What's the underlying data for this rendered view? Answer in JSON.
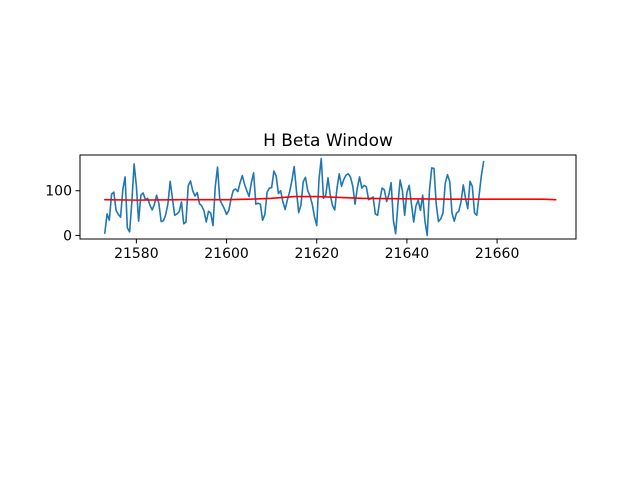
{
  "chart_data": {
    "type": "line",
    "title": "H Beta Window",
    "xlabel": "",
    "ylabel": "",
    "xlim": [
      21567.5,
      21677.5
    ],
    "ylim": [
      -8,
      180
    ],
    "grid": false,
    "x_ticks": [
      21580,
      21600,
      21620,
      21640,
      21660
    ],
    "y_ticks": [
      0,
      100
    ],
    "series": [
      {
        "color": "#1f77b4",
        "x_start": 21573,
        "x_step": 0.5,
        "values": [
          5,
          48,
          34,
          92,
          97,
          56,
          47,
          41,
          103,
          131,
          17,
          8,
          75,
          160,
          111,
          32,
          90,
          95,
          80,
          83,
          68,
          57,
          69,
          90,
          71,
          31,
          33,
          46,
          71,
          121,
          83,
          45,
          48,
          53,
          75,
          26,
          30,
          111,
          122,
          100,
          88,
          96,
          71,
          66,
          55,
          30,
          54,
          50,
          22,
          109,
          153,
          80,
          70,
          60,
          47,
          56,
          82,
          101,
          104,
          98,
          118,
          134,
          114,
          100,
          87,
          118,
          140,
          70,
          72,
          70,
          34,
          47,
          97,
          106,
          107,
          144,
          133,
          94,
          100,
          75,
          58,
          80,
          98,
          123,
          154,
          100,
          51,
          68,
          120,
          130,
          100,
          89,
          70,
          42,
          22,
          125,
          172,
          83,
          90,
          129,
          90,
          67,
          57,
          106,
          138,
          110,
          125,
          135,
          138,
          130,
          110,
          70,
          106,
          131,
          106,
          112,
          109,
          80,
          82,
          86,
          48,
          45,
          80,
          106,
          102,
          76,
          91,
          118,
          34,
          4,
          69,
          124,
          100,
          45,
          96,
          112,
          71,
          30,
          66,
          79,
          56,
          90,
          32,
          0,
          100,
          151,
          150,
          70,
          31,
          37,
          50,
          117,
          136,
          120,
          50,
          32,
          50,
          54,
          75,
          113,
          83,
          60,
          121,
          110,
          50,
          45,
          89,
          133,
          165
        ]
      },
      {
        "color": "#ff0000",
        "x": [
          21573,
          21580,
          21590,
          21600,
          21605,
          21610,
          21615,
          21620,
          21625,
          21630,
          21640,
          21650,
          21660,
          21670,
          21673
        ],
        "values": [
          80,
          79,
          80,
          80,
          81,
          83,
          87,
          87,
          85,
          83,
          82,
          81,
          81,
          81,
          80
        ]
      }
    ]
  }
}
